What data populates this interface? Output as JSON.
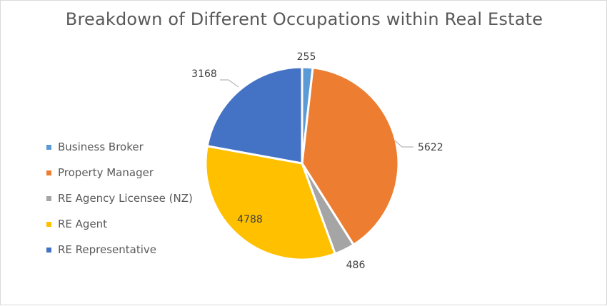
{
  "chart_data": {
    "type": "pie",
    "title": "Breakdown of Different Occupations within Real Estate",
    "categories": [
      "Business Broker",
      "Property Manager",
      "RE Agency Licensee (NZ)",
      "RE Agent",
      "RE Representative"
    ],
    "values": [
      255,
      5622,
      486,
      4788,
      3168
    ],
    "colors": [
      "#5b9bd5",
      "#ed7d31",
      "#a5a5a5",
      "#ffc000",
      "#4472c4"
    ],
    "data_labels": [
      "255",
      "5622",
      "486",
      "4788",
      "3168"
    ],
    "legend_position": "left"
  }
}
